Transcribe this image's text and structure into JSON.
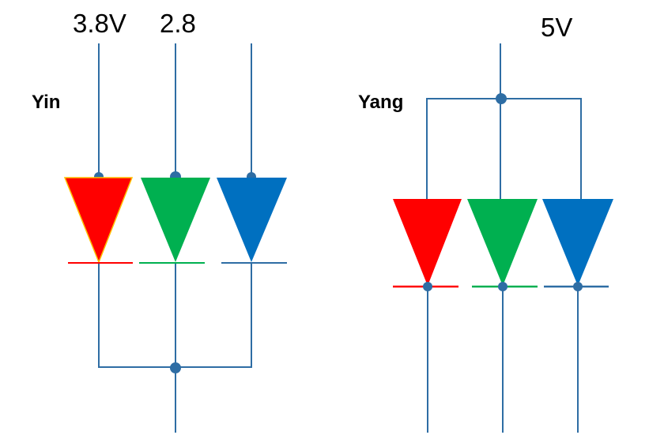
{
  "labels": {
    "voltage_red": "3.8V",
    "voltage_green": "2.8",
    "voltage_common": "5V",
    "yin": "Yin",
    "yang": "Yang"
  },
  "colors": {
    "wire": "#2e6da4",
    "red": "#ff0000",
    "green": "#00b050",
    "blue": "#0070c0",
    "red_outline": "#ffc000"
  },
  "circuits": [
    {
      "name": "Yin",
      "type": "common-cathode",
      "leds": [
        "red",
        "green",
        "blue"
      ]
    },
    {
      "name": "Yang",
      "type": "common-anode",
      "leds": [
        "red",
        "green",
        "blue"
      ]
    }
  ]
}
